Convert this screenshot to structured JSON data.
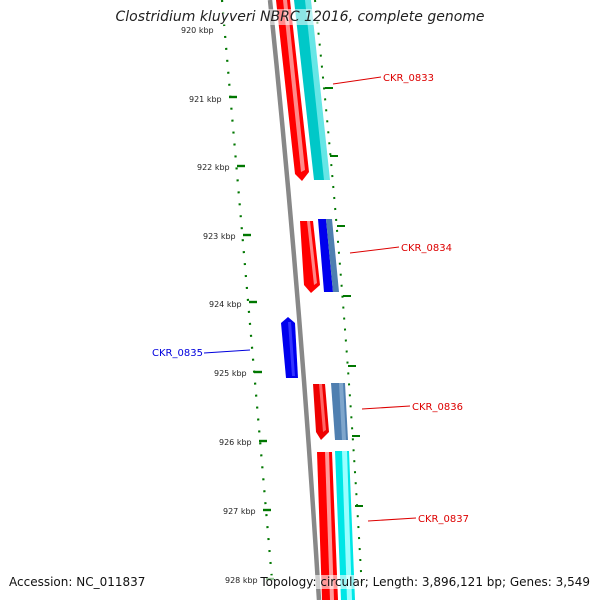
{
  "header": {
    "title": "Clostridium kluyveri NBRC 12016, complete genome"
  },
  "footer": {
    "accession": "Accession: NC_011837",
    "summary": "Topology: circular; Length: 3,896,121 bp; Genes: 3,549"
  },
  "ruler": {
    "tick_labels": [
      "920 kbp",
      "921 kbp",
      "922 kbp",
      "923 kbp",
      "924 kbp",
      "925 kbp",
      "926 kbp",
      "927 kbp",
      "928 kbp"
    ],
    "tick_color": "#007700"
  },
  "genes": [
    {
      "label": "CKR_0833",
      "strand": "forward",
      "color": "#dd0000"
    },
    {
      "label": "CKR_0834",
      "strand": "forward",
      "color": "#dd0000"
    },
    {
      "label": "CKR_0835",
      "strand": "reverse",
      "color": "#0000dd"
    },
    {
      "label": "CKR_0836",
      "strand": "forward",
      "color": "#dd0000"
    },
    {
      "label": "CKR_0837",
      "strand": "forward",
      "color": "#dd0000"
    }
  ],
  "colors": {
    "backbone": "#888888",
    "cds_forward": "#ff0000",
    "cds_reverse": "#0000ee",
    "product_cyan": "#00cccc",
    "product_blue": "#4f7fb0"
  }
}
